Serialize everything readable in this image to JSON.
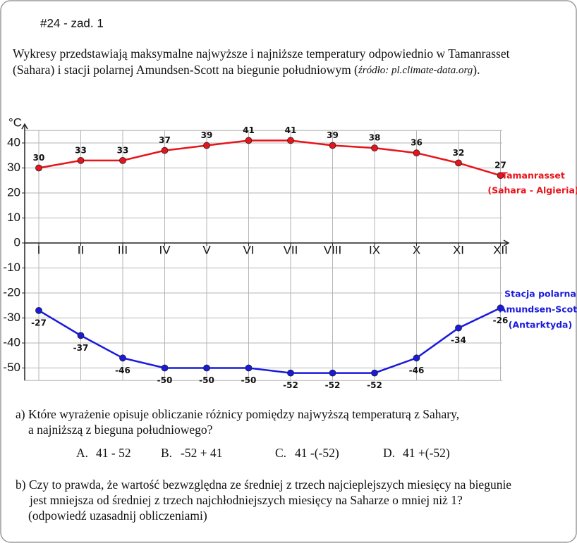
{
  "header": {
    "title": "#24 - zad. 1"
  },
  "intro": {
    "line1": "Wykresy przedstawiają maksymalne najwyższe i najniższe temperatury odpowiednio w Tamanrasset",
    "line2_parts": [
      "(Sahara) i stacji polarnej Amundsen-Scott na biegunie południowym (",
      "źródło: pl.climate-data.org",
      ")."
    ]
  },
  "chart_data": {
    "type": "line",
    "y_unit": "°C",
    "categories": [
      "I",
      "II",
      "III",
      "IV",
      "V",
      "VI",
      "VII",
      "VIII",
      "IX",
      "X",
      "XI",
      "XII"
    ],
    "series": [
      {
        "name": [
          "Tamanrasset",
          "(Sahara - Algieria)"
        ],
        "color": "#e8141b",
        "label_position": "above",
        "values": [
          30,
          33,
          33,
          37,
          39,
          41,
          41,
          39,
          38,
          36,
          32,
          27
        ]
      },
      {
        "name": [
          "Stacja polarna",
          "Amundsen-Scott",
          "(Antarktyda)"
        ],
        "color": "#1a1adc",
        "label_position": "below",
        "values": [
          -27,
          -37,
          -46,
          -50,
          -50,
          -50,
          -52,
          -52,
          -52,
          -46,
          -34,
          -26
        ]
      }
    ],
    "ylim": [
      -55,
      45
    ],
    "yticks": [
      -50,
      -40,
      -30,
      -20,
      -10,
      0,
      10,
      20,
      30,
      40
    ],
    "grid": true
  },
  "questions": {
    "a": {
      "lines": [
        "a) Które wyrażenie opisuje obliczanie różnicy pomiędzy najwyższą temperaturą z Sahary,",
        "a najniższą z bieguna południowego?"
      ],
      "options": [
        {
          "label": "A.",
          "text": "41 - 52"
        },
        {
          "label": "B.",
          "text": "-52 + 41"
        },
        {
          "label": "C.",
          "text": "41 -(-52)"
        },
        {
          "label": "D.",
          "text": "41 +(-52)"
        }
      ]
    },
    "b": {
      "lines": [
        "b) Czy to prawda, że wartość bezwzględna ze średniej z trzech najcieplejszych miesięcy na biegunie",
        "jest mniejsza od średniej z trzech najchłodniejszych miesięcy na Saharze o mniej niż 1?",
        "(odpowiedź uzasadnij obliczeniami)"
      ]
    }
  }
}
